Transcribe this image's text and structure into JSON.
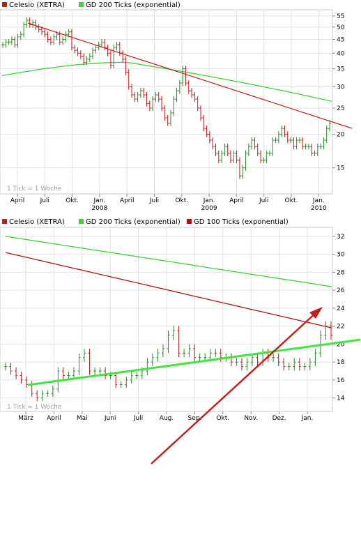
{
  "colors": {
    "price_up": "#2c8a2c",
    "price_down": "#c01a1a",
    "ma200": "#3ad23a",
    "ma100": "#b01212",
    "trend_red": "#c41e1e",
    "trend_green": "#3ee63e",
    "grid": "#e2e2e2"
  },
  "chart_data": [
    {
      "type": "ohlc",
      "legend": [
        {
          "name": "Celesio (XETRA)",
          "color": "#c01a1a"
        },
        {
          "name": "GD 200 Ticks (exponential)",
          "color": "#3ad23a"
        }
      ],
      "y_scale": "log",
      "ylim": [
        12,
        58
      ],
      "y_ticks": [
        15,
        20,
        25,
        30,
        35,
        40,
        45,
        50,
        55
      ],
      "x_ticks": [
        "April",
        "Juli",
        "Okt.",
        "Jan.",
        "April",
        "Juli",
        "Okt.",
        "Jan.",
        "April",
        "Juli",
        "Okt.",
        "Jan."
      ],
      "x_years": [
        "2008",
        "2009",
        "2010"
      ],
      "footnote": "1 Tick = 1 Woche",
      "grid": true,
      "series": [
        {
          "role": "price",
          "closes": [
            43,
            44,
            44,
            45,
            43,
            46,
            47,
            51,
            53,
            51,
            52,
            50,
            49,
            48,
            47,
            45,
            44,
            46,
            47,
            44,
            45,
            47,
            48,
            42,
            41,
            40,
            39,
            37,
            38,
            39,
            41,
            42,
            43,
            44,
            42,
            40,
            36,
            42,
            43,
            40,
            38,
            34,
            30,
            28,
            27,
            28,
            29,
            28,
            26,
            25,
            27,
            28,
            27,
            25,
            23,
            22,
            24,
            27,
            29,
            31,
            35,
            31,
            29,
            28,
            27,
            25,
            23,
            21,
            20,
            19,
            18,
            17,
            16,
            17,
            18,
            17,
            16,
            17,
            16,
            14,
            15,
            17,
            18,
            19,
            18,
            17,
            16,
            16,
            17,
            17,
            19,
            19,
            20,
            21,
            20,
            19,
            19,
            18,
            19,
            19,
            18,
            18,
            18,
            17,
            17,
            18,
            18,
            19,
            21,
            22
          ]
        },
        {
          "role": "ma",
          "name": "GD 200 Ticks (exponential)",
          "values_start": 33,
          "values_peak": 37,
          "values_end": 26.5
        }
      ],
      "trendline": {
        "from": 53,
        "to": 21
      }
    },
    {
      "type": "ohlc",
      "legend": [
        {
          "name": "Celesio (XETRA)",
          "color": "#c01a1a"
        },
        {
          "name": "GD 200 Ticks (exponential)",
          "color": "#3ad23a"
        },
        {
          "name": "GD 100 Ticks (exponential)",
          "color": "#b01212"
        }
      ],
      "ylim": [
        12.5,
        33
      ],
      "y_ticks": [
        14,
        16,
        18,
        20,
        22,
        24,
        26,
        28,
        30,
        32
      ],
      "x_ticks": [
        "März",
        "April",
        "Mai",
        "Juni",
        "Juli",
        "Aug.",
        "Sep.",
        "Okt.",
        "Nov.",
        "Dez.",
        "Jan."
      ],
      "footnote": "1 Tick = 1 Woche",
      "grid": true,
      "series": [
        {
          "role": "price",
          "closes": [
            17.5,
            17.0,
            16.5,
            16.0,
            15.5,
            14.5,
            14.0,
            14.5,
            14.5,
            15.0,
            17.0,
            16.5,
            16.5,
            17.0,
            18.5,
            19.0,
            17.0,
            17.0,
            17.0,
            16.5,
            16.5,
            15.5,
            15.5,
            16.0,
            16.5,
            16.5,
            17.0,
            18.0,
            18.5,
            19.0,
            19.5,
            21.0,
            21.5,
            19.0,
            19.0,
            19.5,
            18.5,
            18.5,
            18.5,
            19.0,
            19.0,
            18.5,
            18.5,
            18.0,
            18.0,
            17.5,
            18.0,
            18.5,
            18.0,
            19.0,
            18.5,
            18.5,
            18.0,
            17.5,
            17.5,
            18.0,
            17.5,
            17.5,
            18.0,
            19.0,
            21.0,
            22.0,
            21.0
          ]
        },
        {
          "role": "ma",
          "name": "GD 200 Ticks (exponential)",
          "values_start": 32.0,
          "values_end": 26.4
        },
        {
          "role": "ma",
          "name": "GD 100 Ticks (exponential)",
          "values_start": 30.2,
          "values_end": 21.8
        }
      ],
      "trendline": {
        "from": 14.1,
        "to": 18.0
      }
    }
  ]
}
